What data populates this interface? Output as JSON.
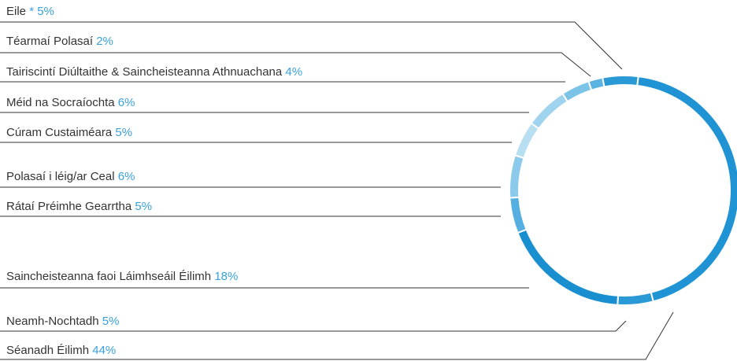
{
  "chart_data": {
    "type": "donut",
    "categories": [
      "Eile",
      "Téarmaí Polasaí",
      "Tairiscintí Diúltaithe & Saincheisteanna Athnuachana",
      "Méid na Socraíochta",
      "Cúram Custaiméara",
      "Polasaí i léig/ar Ceal",
      "Rátaí Préimhe Gearrtha",
      "Saincheisteanna faoi Láimhseáil Éilimh",
      "Neamh-Nochtadh",
      "Séanadh Éilimh"
    ],
    "values": [
      5,
      2,
      4,
      6,
      5,
      6,
      5,
      18,
      5,
      44
    ],
    "value_labels": [
      "* 5%",
      "2%",
      "4%",
      "6%",
      "5%",
      "6%",
      "5%",
      "18%",
      "5%",
      "44%"
    ],
    "colors": [
      "#2a9ad6",
      "#5bb3e2",
      "#7cc3e8",
      "#9fd3ee",
      "#b8def2",
      "#8ccaeb",
      "#55afe0",
      "#1a8fd0",
      "#2a9ad6",
      "#1f93d3"
    ]
  }
}
